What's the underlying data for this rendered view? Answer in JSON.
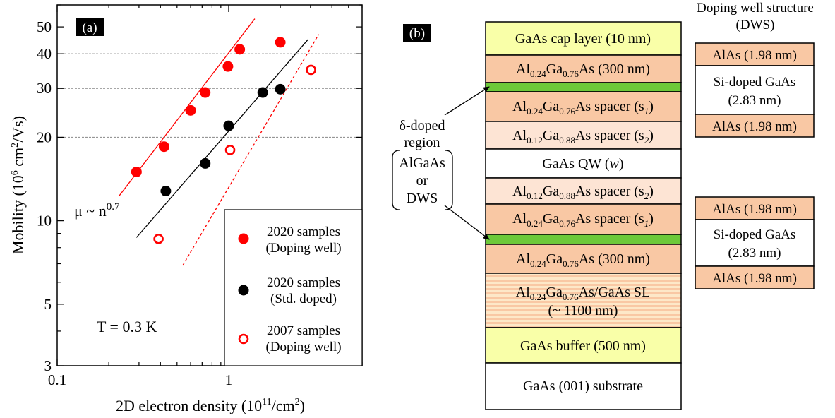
{
  "chart_data": {
    "type": "scatter",
    "panel_label": "(a)",
    "xlabel": "2D electron density (10",
    "xlabel_sup": "11",
    "xlabel_end": "/cm",
    "xlabel_sup2": "2",
    "xlabel_close": ")",
    "ylabel": "Mobility (10",
    "ylabel_sup": "6",
    "ylabel_mid": " cm",
    "ylabel_sup2": "2",
    "ylabel_end": "/Vs)",
    "x_scale": "log",
    "y_scale": "log",
    "xlim": [
      0.1,
      6
    ],
    "ylim": [
      3,
      60
    ],
    "x_ticks": [
      {
        "v": 0.1,
        "label": "0.1"
      },
      {
        "v": 1,
        "label": "1"
      }
    ],
    "y_ticks": [
      {
        "v": 3,
        "label": "3"
      },
      {
        "v": 5,
        "label": "5"
      },
      {
        "v": 10,
        "label": "10"
      },
      {
        "v": 20,
        "label": "20"
      },
      {
        "v": 30,
        "label": "30"
      },
      {
        "v": 40,
        "label": "40"
      },
      {
        "v": 50,
        "label": "50"
      }
    ],
    "grid_y": [
      20,
      30,
      40
    ],
    "annotation_fit": "μ ~ n",
    "annotation_fit_sup": "0.7",
    "annotation_temp": "T = 0.3 K",
    "legend_position": "bottom-right",
    "series": [
      {
        "label_line1": "2020 samples",
        "label_line2": "(Doping well)",
        "color": "#ff0000",
        "marker": "filled",
        "points": [
          [
            0.29,
            15
          ],
          [
            0.42,
            18.5
          ],
          [
            0.6,
            25
          ],
          [
            0.73,
            29
          ],
          [
            0.99,
            36
          ],
          [
            1.16,
            41.5
          ],
          [
            2.0,
            44
          ]
        ],
        "fit": {
          "x": [
            0.23,
            1.42
          ],
          "y": [
            12.3,
            53.5
          ],
          "dashed": false
        }
      },
      {
        "label_line1": "2020 samples",
        "label_line2": "(Std. doped)",
        "color": "#000000",
        "marker": "filled",
        "points": [
          [
            0.43,
            12.8
          ],
          [
            0.73,
            16.1
          ],
          [
            1.0,
            22
          ],
          [
            1.58,
            29
          ],
          [
            2.0,
            29.8
          ]
        ],
        "fit": {
          "x": [
            0.29,
            2.9
          ],
          "y": [
            8.7,
            45
          ],
          "dashed": false
        }
      },
      {
        "label_line1": "2007 samples",
        "label_line2": "(Doping well)",
        "color": "#ff0000",
        "marker": "open",
        "points": [
          [
            0.39,
            8.6
          ],
          [
            1.02,
            18
          ],
          [
            3.02,
            35
          ]
        ],
        "fit": {
          "x": [
            0.54,
            3.35
          ],
          "y": [
            6.9,
            47
          ],
          "dashed": true
        }
      }
    ]
  },
  "diagram": {
    "panel_label": "(b)",
    "dws_title_line1": "Doping well structure",
    "dws_title_line2": "(DWS)",
    "delta_region_line1": "δ-doped",
    "delta_region_line2": "region",
    "bracket_line1": "AlGaAs",
    "bracket_line2": "or",
    "bracket_line3": "DWS",
    "layers": {
      "cap": "GaAs cap layer (10 nm)",
      "barrier_top": "(300 nm)",
      "spacer1_top": "(s",
      "spacer2_top": "(s",
      "qw": "GaAs QW (",
      "qw_var": "w",
      "spacer2_bottom": "(s",
      "spacer1_bottom": "(s",
      "barrier_bottom": "(300 nm)",
      "sl_line2": "(~ 1100 nm)",
      "buffer": "GaAs buffer (500 nm)",
      "substrate": "GaAs (001) substrate"
    },
    "alloy_024": {
      "al": "Al",
      "x": "0.24",
      "ga": "Ga",
      "y": "0.76",
      "as": "As"
    },
    "alloy_012": {
      "al": "Al",
      "x": "0.12",
      "ga": "Ga",
      "y": "0.88",
      "as": "As"
    },
    "spacer_word": " spacer ",
    "sub1": "1",
    "sub2": "2",
    "close": ")",
    "sl_suffix": "As/GaAs SL",
    "dws_top": {
      "alas1": "AlAs (1.98 nm)",
      "si_line1": "Si-doped GaAs",
      "si_line2": "(2.83 nm)",
      "alas2": "AlAs (1.98 nm)"
    },
    "dws_bottom": {
      "alas1": "AlAs (1.98 nm)",
      "si_line1": "Si-doped GaAs",
      "si_line2": "(2.83 nm)",
      "alas2": "AlAs (1.98 nm)"
    },
    "colors": {
      "yellow": "#f9ffa8",
      "orange": "#f9c8a4",
      "light_orange": "#fde4d4",
      "green": "#6dc93a",
      "white": "#ffffff",
      "sl_stripe": "#fce6c2"
    }
  }
}
